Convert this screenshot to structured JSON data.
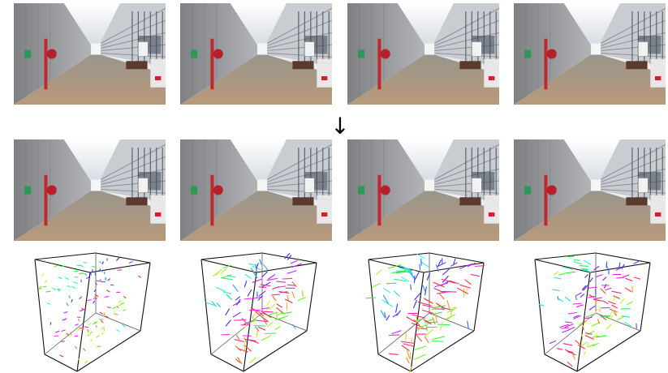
{
  "figure": {
    "arrow": "↓",
    "columns": 4,
    "rows": [
      {
        "name": "input-photos",
        "kind": "photo",
        "tints": [
          "#e9ecf1",
          "#eef0ee",
          "#e4e7f2",
          "#f3ede4"
        ]
      },
      {
        "name": "corrected-photos",
        "kind": "photo",
        "tints": [
          "#ecedee",
          "#ecedee",
          "#ecedee",
          "#ecedee"
        ]
      },
      {
        "name": "color-transform-cubes",
        "kind": "cube",
        "vector_strength": [
          0.18,
          0.75,
          0.95,
          0.6
        ]
      }
    ]
  }
}
